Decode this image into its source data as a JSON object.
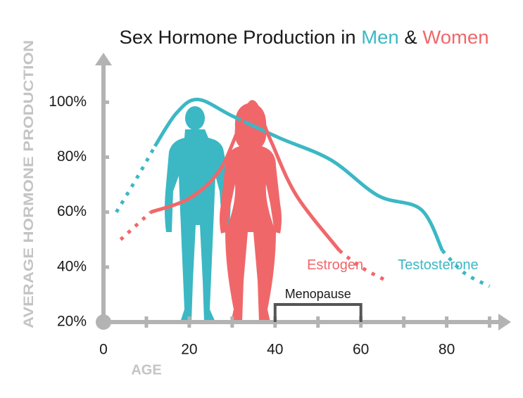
{
  "chart_data": {
    "type": "line",
    "title_parts": [
      {
        "text": "Sex Hormone Production in ",
        "color": "#1a1a1a"
      },
      {
        "text": "Men",
        "color": "#3bb8c4"
      },
      {
        "text": " & ",
        "color": "#1a1a1a"
      },
      {
        "text": "Women",
        "color": "#f0676a"
      }
    ],
    "y_label": "AVERAGE HORMONE PRODUCTION",
    "x_label": "AGE",
    "xlim": [
      0,
      95
    ],
    "ylim": [
      20,
      118
    ],
    "xticks": [
      0,
      20,
      40,
      60,
      80
    ],
    "xminorticks": [
      10,
      30,
      50,
      70,
      90
    ],
    "yticks": [
      {
        "value": 20,
        "label": "20%"
      },
      {
        "value": 40,
        "label": "40%"
      },
      {
        "value": 60,
        "label": "60%"
      },
      {
        "value": 80,
        "label": "80%"
      },
      {
        "value": 100,
        "label": "100%"
      }
    ],
    "series": [
      {
        "name": "Testosterone",
        "color": "#3bb8c4",
        "label_at": [
          78,
          40
        ],
        "segments": [
          {
            "style": "dotted",
            "x": [
              3,
              8,
              12
            ],
            "values": [
              60,
              73,
              84
            ]
          },
          {
            "style": "solid",
            "x": [
              12,
              17,
              22,
              30,
              41,
              53,
              64,
              74,
              79
            ],
            "values": [
              84,
              96,
              101,
              95,
              87,
              79,
              66,
              61,
              46
            ]
          },
          {
            "style": "dotted",
            "x": [
              79,
              84,
              90
            ],
            "values": [
              46,
              38,
              33
            ]
          }
        ]
      },
      {
        "name": "Estrogen",
        "color": "#f0676a",
        "label_at": [
          54,
          40
        ],
        "segments": [
          {
            "style": "dotted",
            "x": [
              4,
              11
            ],
            "values": [
              50,
              60
            ]
          },
          {
            "style": "solid",
            "x": [
              11,
              20,
              27,
              32,
              35,
              39,
              45,
              55
            ],
            "values": [
              60,
              65,
              75,
              92,
              100,
              86,
              66,
              46
            ]
          },
          {
            "style": "dotted",
            "x": [
              55,
              60,
              66
            ],
            "values": [
              46,
              40,
              35
            ]
          }
        ]
      }
    ],
    "menopause": {
      "label": "Menopause",
      "range": [
        40,
        60
      ],
      "color": "#555555"
    }
  }
}
